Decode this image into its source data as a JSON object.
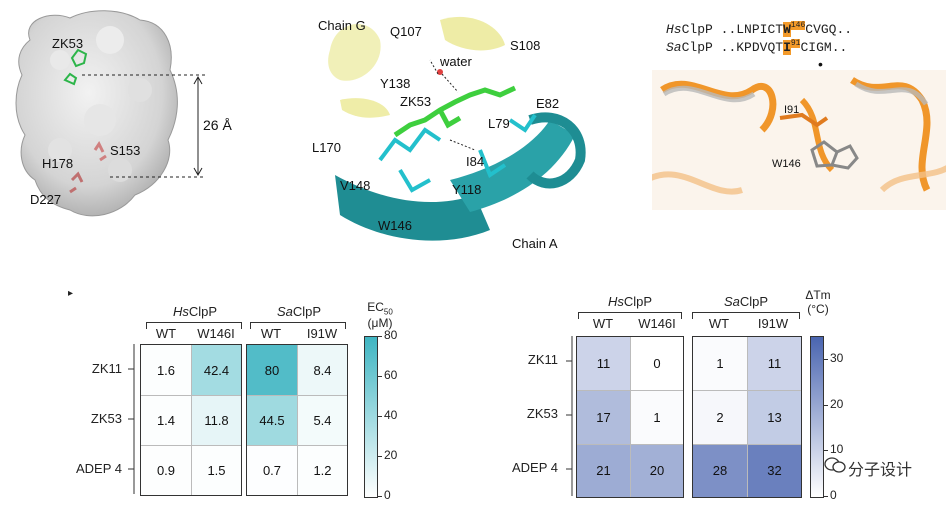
{
  "panels": {
    "surface": {
      "labels": {
        "zk53": "ZK53",
        "s153": "S153",
        "h178": "H178",
        "d227": "D227",
        "dist": "26 Å"
      }
    },
    "pocket": {
      "labels": {
        "chain_g": "Chain G",
        "q107": "Q107",
        "s108": "S108",
        "water": "water",
        "y138": "Y138",
        "zk53": "ZK53",
        "e82": "E82",
        "l79": "L79",
        "l170": "L170",
        "i84": "I84",
        "v148": "V148",
        "y118": "Y118",
        "w146": "W146",
        "chain_a": "Chain A"
      }
    },
    "alignment": {
      "hs_species": "Hs",
      "hs_name": "ClpP",
      "hs_pre": "..LNPICT",
      "hs_res": "W",
      "hs_num": "146",
      "hs_post": "CVGQ..",
      "sa_species": "Sa",
      "sa_name": "ClpP",
      "sa_pre": "..KPDVQT",
      "sa_res": "I",
      "sa_num": "91",
      "sa_post": "CIGM..",
      "dot": "•",
      "i91": "I91",
      "w146": "W146"
    }
  },
  "chart_data": [
    {
      "type": "heatmap",
      "groups": [
        {
          "species": "Hs",
          "name": "ClpP",
          "columns": [
            "WT",
            "W146I"
          ]
        },
        {
          "species": "Sa",
          "name": "ClpP",
          "columns": [
            "WT",
            "I91W"
          ]
        }
      ],
      "rows": [
        "ZK11",
        "ZK53",
        "ADEP 4"
      ],
      "values": [
        [
          1.6,
          42.4,
          80,
          8.4
        ],
        [
          1.4,
          11.8,
          44.5,
          5.4
        ],
        [
          0.9,
          1.5,
          0.7,
          1.2
        ]
      ],
      "colorbar": {
        "title": "EC",
        "sub": "50",
        "unit": "(μM)",
        "range": [
          0,
          80
        ],
        "ticks": [
          0,
          20,
          40,
          60,
          80
        ],
        "color": "#3fb5c2"
      }
    },
    {
      "type": "heatmap",
      "groups": [
        {
          "species": "Hs",
          "name": "ClpP",
          "columns": [
            "WT",
            "W146I"
          ]
        },
        {
          "species": "Sa",
          "name": "ClpP",
          "columns": [
            "WT",
            "I91W"
          ]
        }
      ],
      "rows": [
        "ZK11",
        "ZK53",
        "ADEP 4"
      ],
      "values": [
        [
          11,
          0,
          1,
          11
        ],
        [
          17,
          1,
          2,
          13
        ],
        [
          21,
          20,
          28,
          32
        ]
      ],
      "colorbar": {
        "title": "ΔTm",
        "unit": "(°C)",
        "range": [
          0,
          35
        ],
        "ticks": [
          0,
          10,
          20,
          30
        ],
        "color": "#4a65b0"
      }
    }
  ],
  "watermark": "分子设计"
}
